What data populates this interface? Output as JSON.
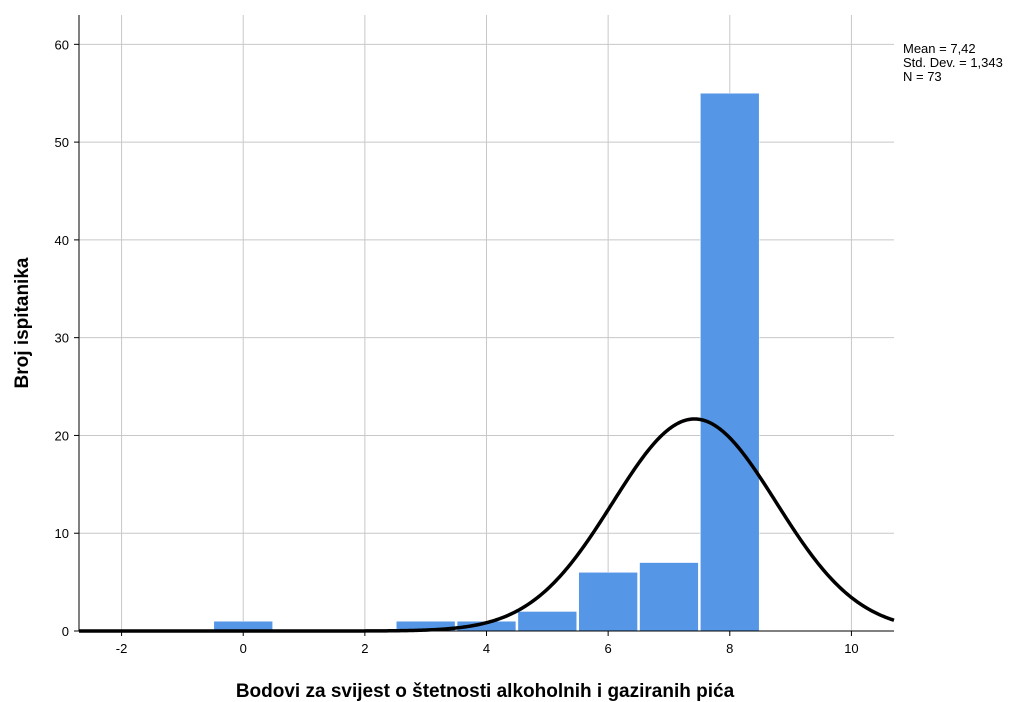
{
  "chart_data": {
    "type": "histogram",
    "xlabel": "Bodovi za svijest o štetnosti alkoholnih i gaziranih pića",
    "ylabel": "Broj ispitanika",
    "xlim": [
      -2.7,
      10.7
    ],
    "ylim": [
      0,
      63
    ],
    "x_ticks": [
      -2,
      0,
      2,
      4,
      6,
      8,
      10
    ],
    "y_ticks": [
      0,
      10,
      20,
      30,
      40,
      50,
      60
    ],
    "grid": true,
    "bar_color": "#5596E6",
    "curve_color": "#000000",
    "bins": [
      {
        "x": 0,
        "count": 1
      },
      {
        "x": 3,
        "count": 1
      },
      {
        "x": 4,
        "count": 1
      },
      {
        "x": 5,
        "count": 2
      },
      {
        "x": 6,
        "count": 6
      },
      {
        "x": 7,
        "count": 7
      },
      {
        "x": 8,
        "count": 55
      }
    ],
    "bin_width": 1,
    "normal_curve": {
      "mean": 7.42,
      "std_dev": 1.343,
      "n": 73
    },
    "stats_lines": [
      "Mean = 7,42",
      "Std. Dev. = 1,343",
      "N = 73"
    ]
  }
}
